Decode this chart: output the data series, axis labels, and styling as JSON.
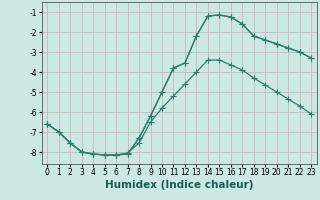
{
  "xlabel": "Humidex (Indice chaleur)",
  "background_color": "#cce8e5",
  "grid_color": "#c8b8b8",
  "line_color": "#2e7d6e",
  "xlim": [
    -0.5,
    23.5
  ],
  "ylim": [
    -8.6,
    -0.5
  ],
  "xticks": [
    0,
    1,
    2,
    3,
    4,
    5,
    6,
    7,
    8,
    9,
    10,
    11,
    12,
    13,
    14,
    15,
    16,
    17,
    18,
    19,
    20,
    21,
    22,
    23
  ],
  "yticks": [
    -8,
    -7,
    -6,
    -5,
    -4,
    -3,
    -2,
    -1
  ],
  "line1_x": [
    0,
    1,
    2,
    3,
    4,
    5,
    6,
    7,
    8,
    9,
    10,
    11,
    12,
    13,
    14,
    15,
    16,
    17,
    18,
    19,
    20,
    21,
    22,
    23
  ],
  "line1_y": [
    -6.6,
    -7.0,
    -7.55,
    -8.0,
    -8.1,
    -8.15,
    -8.15,
    -8.1,
    -7.3,
    -6.2,
    -5.0,
    -3.8,
    -3.55,
    -2.2,
    -1.2,
    -1.15,
    -1.25,
    -1.6,
    -2.2,
    -2.4,
    -2.6,
    -2.8,
    -3.0,
    -3.3
  ],
  "line2_x": [
    0,
    1,
    2,
    3,
    4,
    5,
    6,
    7,
    8,
    9,
    10,
    11,
    12,
    13,
    14,
    15,
    16,
    17,
    18,
    19,
    20,
    21,
    22,
    23
  ],
  "line2_y": [
    -6.6,
    -7.0,
    -7.55,
    -8.0,
    -8.1,
    -8.15,
    -8.15,
    -8.05,
    -7.55,
    -6.5,
    -5.8,
    -5.2,
    -4.6,
    -4.0,
    -3.4,
    -3.4,
    -3.65,
    -3.9,
    -4.3,
    -4.65,
    -5.0,
    -5.35,
    -5.7,
    -6.1
  ],
  "line3_x": [
    0,
    1,
    2,
    3,
    4,
    5,
    6,
    7,
    8,
    9,
    10,
    11,
    12,
    13,
    14,
    15,
    16,
    17,
    18,
    19,
    20,
    21,
    22,
    23
  ],
  "line3_y": [
    -6.6,
    -7.0,
    -7.55,
    -8.0,
    -8.1,
    -8.15,
    -8.15,
    -8.1,
    -7.3,
    -6.2,
    -5.0,
    -3.8,
    -3.55,
    -2.2,
    -1.2,
    -1.15,
    -1.25,
    -1.6,
    -2.2,
    -2.4,
    -2.6,
    -2.8,
    -3.0,
    -3.3
  ],
  "marker_size": 2.2,
  "line_width": 0.9,
  "tick_fontsize": 5.5,
  "xlabel_fontsize": 7.5
}
